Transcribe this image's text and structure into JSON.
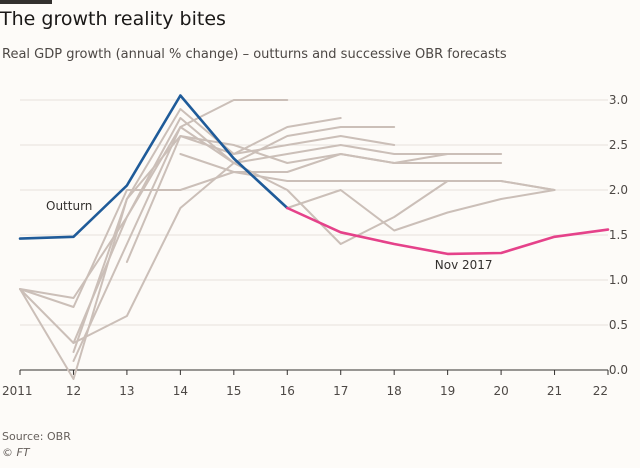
{
  "title": "The growth reality bites",
  "subtitle": "Real GDP growth (annual % change) – outturns and successive OBR forecasts",
  "source": "Source: OBR",
  "credit": "© FT",
  "colors": {
    "outturn": "#1f5b99",
    "latest_forecast": "#e5428a",
    "previous_forecasts": "#cbbfb8",
    "grid": "#e6e1dc",
    "axis": "#33302e"
  },
  "chart_data": {
    "type": "line",
    "title": "The growth reality bites",
    "subtitle": "Real GDP growth (annual % change) – outturns and successive OBR forecasts",
    "xlabel": "",
    "ylabel": "",
    "x_ticks": [
      2011,
      2012,
      2013,
      2014,
      2015,
      2016,
      2017,
      2018,
      2019,
      2020,
      2021,
      2022
    ],
    "x_tick_labels": [
      "2011",
      "12",
      "13",
      "14",
      "15",
      "16",
      "17",
      "18",
      "19",
      "20",
      "21",
      "22"
    ],
    "xlim": [
      2011,
      2022
    ],
    "ylim": [
      0,
      3
    ],
    "y_ticks": [
      0,
      0.5,
      1,
      1.5,
      2,
      2.5,
      3
    ],
    "y_tick_labels": [
      "0.0",
      "0.5",
      "1.0",
      "1.5",
      "2.0",
      "2.5",
      "3.0"
    ],
    "y_axis_side": "right",
    "grid": "horizontal",
    "annotations": [
      {
        "text": "Outturn",
        "series": "outturn"
      },
      {
        "text": "Nov 2017",
        "series": "latest_forecast"
      }
    ],
    "series": [
      {
        "key": "outturn",
        "role": "outturn",
        "x": [
          2011,
          2012,
          2013,
          2014,
          2015,
          2016
        ],
        "values": [
          1.46,
          1.48,
          2.05,
          3.05,
          2.35,
          1.8
        ]
      },
      {
        "key": "latest_forecast",
        "role": "latest",
        "x": [
          2016,
          2017,
          2018,
          2019,
          2020,
          2021,
          2022
        ],
        "values": [
          1.8,
          1.53,
          1.4,
          1.29,
          1.3,
          1.48,
          1.56
        ]
      },
      {
        "key": "forecast_1",
        "role": "previous",
        "x": [
          2011,
          2012,
          2013,
          2014,
          2015,
          2016
        ],
        "values": [
          0.9,
          0.8,
          1.7,
          2.7,
          3.0,
          3.0
        ]
      },
      {
        "key": "forecast_2",
        "role": "previous",
        "x": [
          2011,
          2012,
          2013,
          2014,
          2015,
          2016,
          2017
        ],
        "values": [
          0.9,
          -0.1,
          1.9,
          2.9,
          2.4,
          2.7,
          2.8
        ]
      },
      {
        "key": "forecast_3",
        "role": "previous",
        "x": [
          2012,
          2013,
          2014,
          2015,
          2016,
          2017,
          2018
        ],
        "values": [
          0.3,
          1.7,
          2.8,
          2.3,
          2.6,
          2.7,
          2.7
        ]
      },
      {
        "key": "forecast_4",
        "role": "previous",
        "x": [
          2012,
          2013,
          2014,
          2015,
          2016,
          2017,
          2018
        ],
        "values": [
          0.2,
          1.9,
          2.6,
          2.4,
          2.5,
          2.6,
          2.5
        ]
      },
      {
        "key": "forecast_5",
        "role": "previous",
        "x": [
          2012,
          2013,
          2014,
          2015,
          2016,
          2017,
          2018,
          2019
        ],
        "values": [
          0.1,
          1.4,
          2.7,
          2.3,
          2.4,
          2.5,
          2.4,
          2.4
        ]
      },
      {
        "key": "forecast_6",
        "role": "previous",
        "x": [
          2013,
          2014,
          2015,
          2016,
          2017,
          2018,
          2019,
          2020
        ],
        "values": [
          1.2,
          2.6,
          2.5,
          2.3,
          2.4,
          2.3,
          2.4,
          2.4
        ]
      },
      {
        "key": "forecast_7",
        "role": "previous",
        "x": [
          2014,
          2015,
          2016,
          2017,
          2018,
          2019,
          2020
        ],
        "values": [
          2.4,
          2.2,
          2.2,
          2.4,
          2.3,
          2.3,
          2.3
        ]
      },
      {
        "key": "forecast_8",
        "role": "previous",
        "x": [
          2011,
          2012,
          2013,
          2014,
          2015,
          2016,
          2017,
          2018,
          2019,
          2020,
          2021
        ],
        "values": [
          0.9,
          0.7,
          2.0,
          2.0,
          2.2,
          2.1,
          2.1,
          2.1,
          2.1,
          2.1,
          2.0
        ]
      },
      {
        "key": "forecast_9",
        "role": "previous",
        "x": [
          2011,
          2012,
          2013,
          2014,
          2015,
          2016,
          2017,
          2018,
          2019,
          2020,
          2021
        ],
        "values": [
          0.9,
          0.3,
          0.6,
          1.8,
          2.3,
          2.0,
          1.4,
          1.7,
          2.1,
          2.1,
          2.0
        ]
      },
      {
        "key": "forecast_10",
        "role": "previous",
        "x": [
          2016,
          2017,
          2018,
          2019,
          2020,
          2021
        ],
        "values": [
          1.8,
          2.0,
          1.55,
          1.75,
          1.9,
          2.0
        ]
      }
    ]
  }
}
